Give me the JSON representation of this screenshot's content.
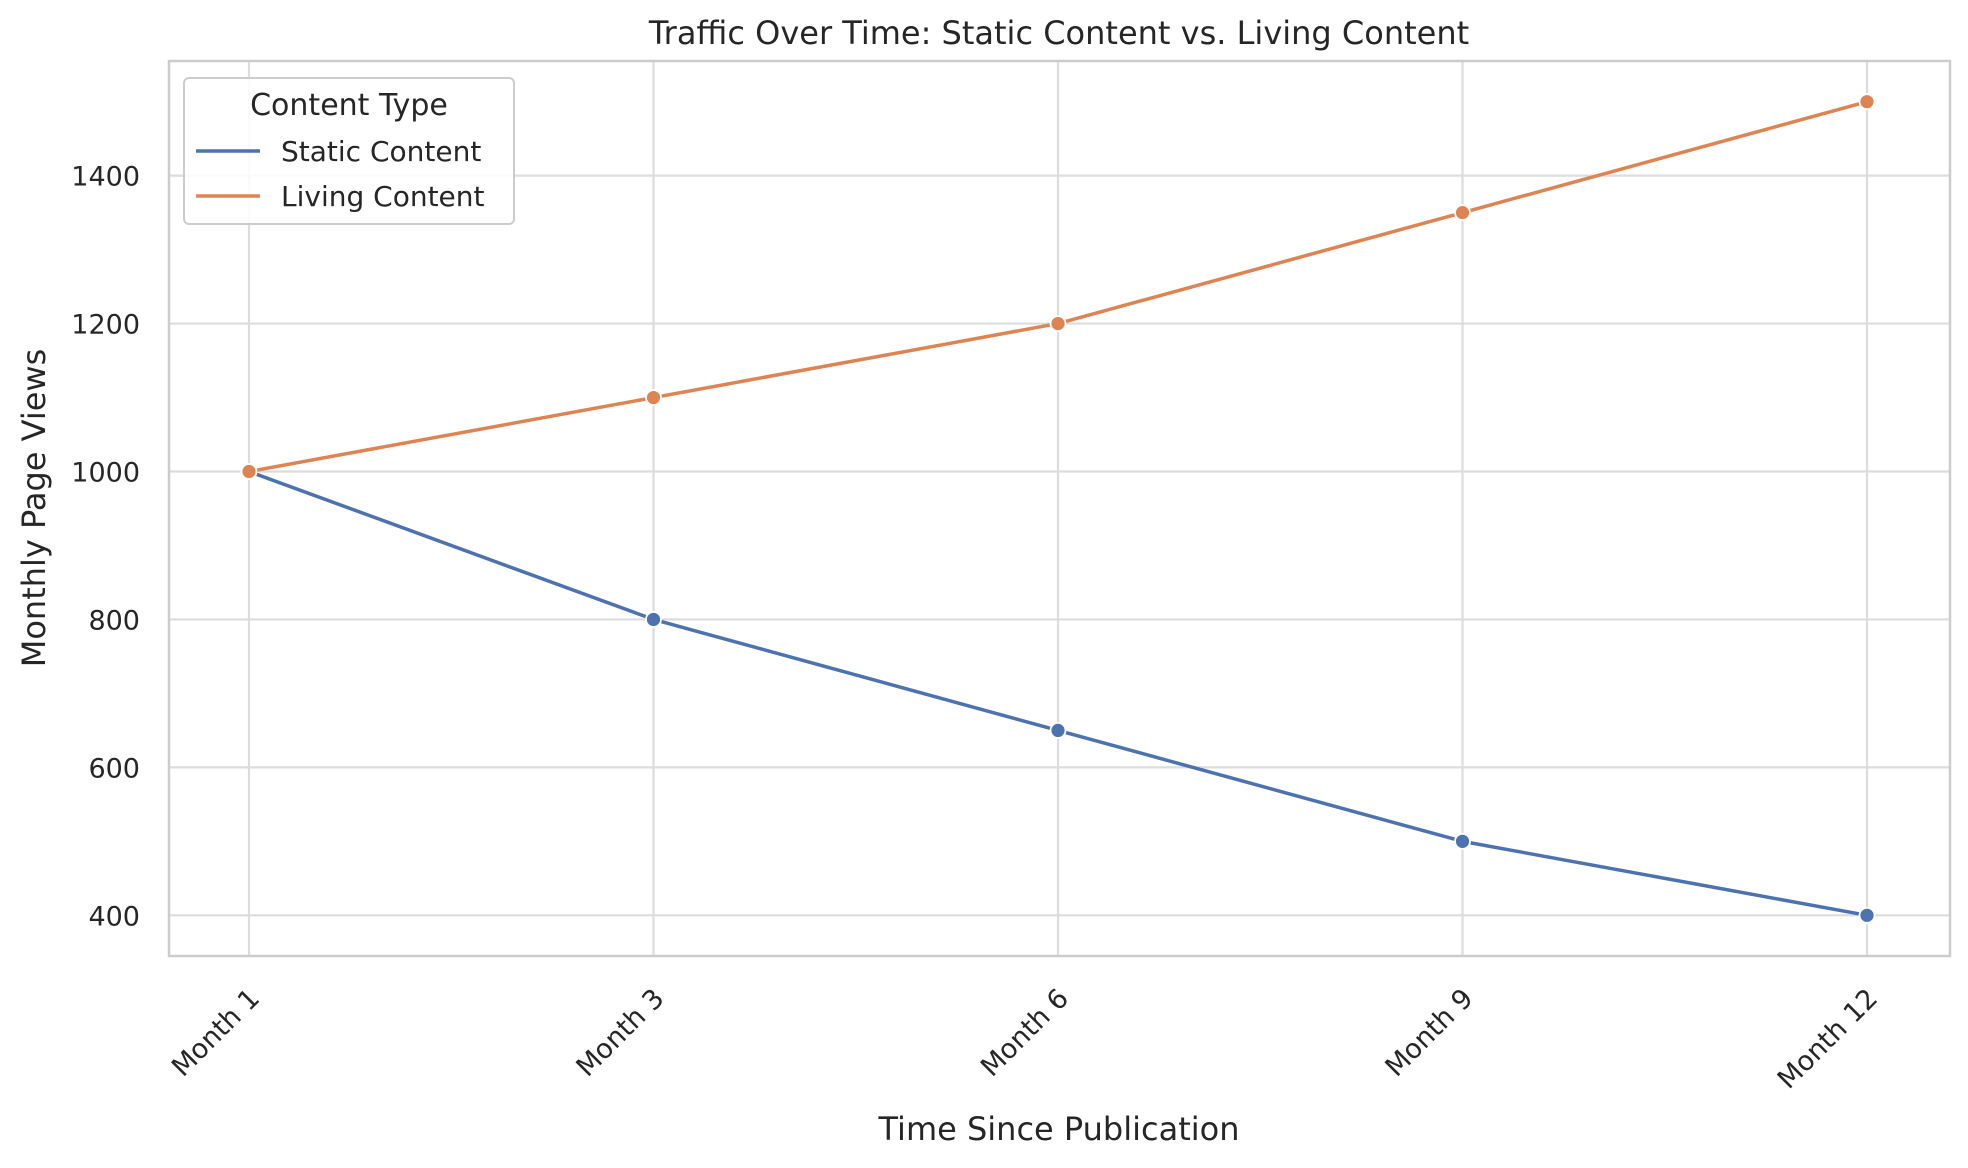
{
  "chart_data": {
    "type": "line",
    "title": "Traffic Over Time: Static Content vs. Living Content",
    "xlabel": "Time Since Publication",
    "ylabel": "Monthly Page Views",
    "categories": [
      "Month 1",
      "Month 3",
      "Month 6",
      "Month 9",
      "Month 12"
    ],
    "series": [
      {
        "name": "Static Content",
        "values": [
          1000,
          800,
          650,
          500,
          400
        ],
        "color": "#4c72b0"
      },
      {
        "name": "Living Content",
        "values": [
          1000,
          1100,
          1200,
          1350,
          1500
        ],
        "color": "#dd8452"
      }
    ],
    "ylim": [
      345,
      1555
    ],
    "yticks": [
      400,
      600,
      800,
      1000,
      1200,
      1400
    ],
    "grid": true,
    "legend": {
      "title": "Content Type",
      "placement": "top-left"
    }
  }
}
